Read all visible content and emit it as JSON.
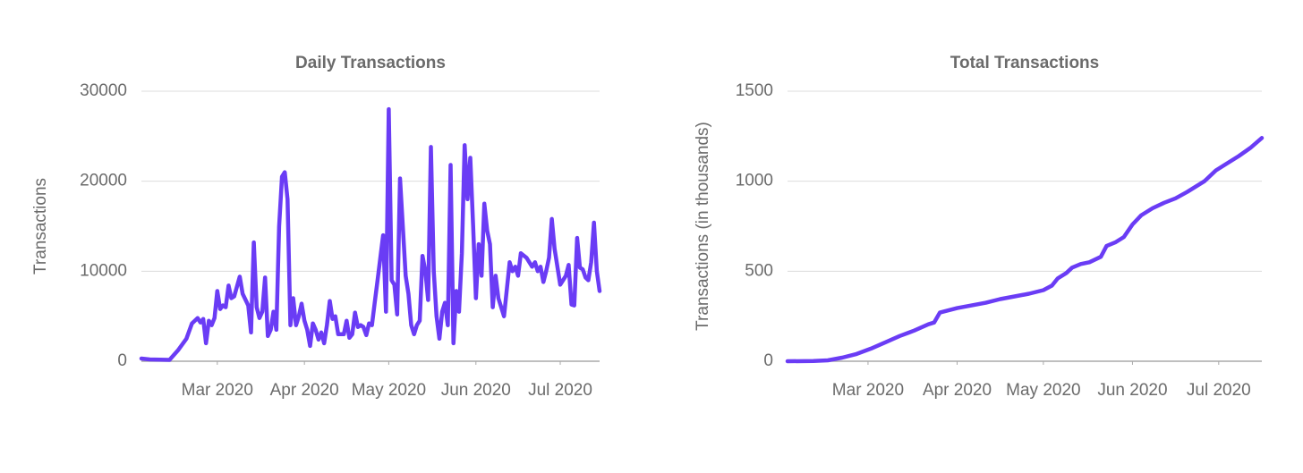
{
  "chart_data": [
    {
      "type": "line",
      "title": "Daily Transactions",
      "y_label": "Transactions",
      "color": "#6a3cf5",
      "grid": true,
      "xlim": [
        2,
        165
      ],
      "xticks": [
        {
          "value": 29,
          "label": "Mar 2020"
        },
        {
          "value": 60,
          "label": "Apr 2020"
        },
        {
          "value": 90,
          "label": "May 2020"
        },
        {
          "value": 121,
          "label": "Jun 2020"
        },
        {
          "value": 151,
          "label": "Jul 2020"
        }
      ],
      "ylim": [
        0,
        30000
      ],
      "yticks": [
        0,
        10000,
        20000,
        30000
      ],
      "x": [
        2,
        5,
        12,
        15,
        18,
        20,
        22,
        23,
        24,
        25,
        26,
        27,
        28,
        29,
        30,
        31,
        32,
        33,
        34,
        35,
        37,
        38,
        40,
        41,
        42,
        43,
        44,
        45,
        46,
        47,
        48,
        49,
        50,
        51,
        52,
        53,
        54,
        55,
        56,
        57,
        58,
        59,
        60,
        61,
        62,
        63,
        64,
        65,
        66,
        67,
        68,
        69,
        70,
        71,
        72,
        73,
        74,
        75,
        76,
        77,
        78,
        79,
        80,
        81,
        82,
        83,
        84,
        85,
        86,
        88,
        89,
        90,
        91,
        92,
        93,
        94,
        96,
        97,
        98,
        99,
        100,
        101,
        102,
        103,
        104,
        105,
        106,
        107,
        108,
        109,
        110,
        111,
        112,
        113,
        114,
        115,
        116,
        117,
        118,
        119,
        120,
        121,
        122,
        123,
        124,
        125,
        126,
        127,
        128,
        129,
        131,
        133,
        134,
        135,
        136,
        137,
        139,
        140,
        141,
        142,
        143,
        144,
        145,
        146,
        147,
        148,
        149,
        151,
        152,
        153,
        154,
        155,
        156,
        157,
        158,
        159,
        160,
        161,
        162,
        163,
        164,
        165
      ],
      "values": [
        300,
        200,
        150,
        1200,
        2500,
        4200,
        4800,
        4300,
        4700,
        2000,
        4500,
        4000,
        4800,
        7800,
        5800,
        6200,
        6000,
        8400,
        7000,
        7200,
        9400,
        7500,
        6200,
        3200,
        13200,
        6000,
        4800,
        5500,
        9300,
        2800,
        3500,
        5500,
        3500,
        15000,
        20500,
        21000,
        18000,
        4000,
        7000,
        4000,
        5000,
        6400,
        4500,
        3500,
        1700,
        4200,
        3500,
        2400,
        3200,
        2000,
        4000,
        6700,
        4700,
        5000,
        3000,
        3000,
        3000,
        4500,
        2600,
        3000,
        5400,
        3800,
        4000,
        3800,
        2900,
        4200,
        4000,
        6500,
        9000,
        14000,
        5500,
        28000,
        9000,
        8500,
        5200,
        20300,
        9500,
        7500,
        4000,
        3000,
        4000,
        4500,
        11700,
        10000,
        6800,
        23800,
        10000,
        5000,
        2500,
        5500,
        6500,
        4000,
        21800,
        2000,
        7800,
        5500,
        12000,
        24000,
        18000,
        22600,
        15000,
        7000,
        13000,
        9500,
        17500,
        14500,
        13000,
        6000,
        9500,
        7000,
        5000,
        11000,
        10000,
        10500,
        9500,
        12000,
        11500,
        11000,
        10500,
        11000,
        10000,
        10500,
        8800,
        10000,
        11500,
        15800,
        12500,
        8500,
        9000,
        9500,
        10700,
        6300,
        6200,
        13700,
        10400,
        10200,
        9300,
        9000,
        11000,
        15400,
        10000,
        7800
      ]
    },
    {
      "type": "line",
      "title": "Total Transactions",
      "y_label": "Transactions (in thousands)",
      "color": "#6a3cf5",
      "grid": true,
      "xlim": [
        1,
        166
      ],
      "xticks": [
        {
          "value": 29,
          "label": "Mar 2020"
        },
        {
          "value": 60,
          "label": "Apr 2020"
        },
        {
          "value": 90,
          "label": "May 2020"
        },
        {
          "value": 121,
          "label": "Jun 2020"
        },
        {
          "value": 151,
          "label": "Jul 2020"
        }
      ],
      "ylim": [
        0,
        1500
      ],
      "yticks": [
        0,
        500,
        1000,
        1500
      ],
      "x": [
        1,
        10,
        15,
        20,
        25,
        30,
        35,
        40,
        45,
        50,
        52,
        54,
        60,
        65,
        70,
        75,
        80,
        85,
        90,
        93,
        95,
        98,
        100,
        103,
        106,
        110,
        112,
        115,
        118,
        121,
        124,
        128,
        132,
        136,
        140,
        146,
        150,
        154,
        158,
        162,
        166
      ],
      "values": [
        0,
        1,
        5,
        20,
        40,
        70,
        105,
        140,
        170,
        205,
        215,
        270,
        295,
        310,
        325,
        345,
        360,
        375,
        395,
        420,
        460,
        490,
        520,
        540,
        550,
        580,
        640,
        660,
        690,
        760,
        810,
        850,
        880,
        905,
        940,
        1000,
        1060,
        1100,
        1140,
        1185,
        1240
      ]
    }
  ]
}
